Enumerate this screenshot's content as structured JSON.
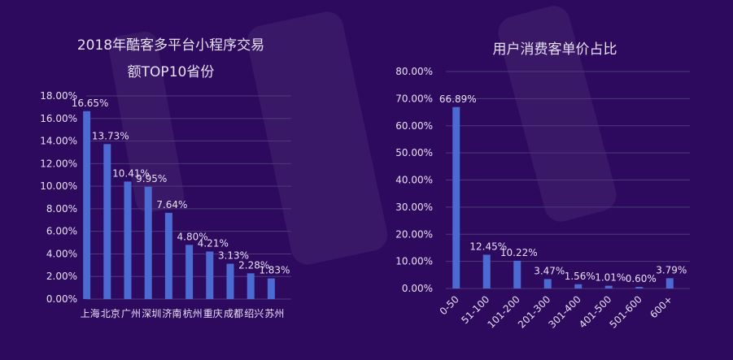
{
  "colors": {
    "background": "#2d0a5e",
    "bar": "#4a6ad4",
    "grid": "#4c3a78",
    "text": "#e6e0f2"
  },
  "chart_data": [
    {
      "type": "bar",
      "title_line1": "2018年酷客多平台小程序交易",
      "title_line2": "额TOP10省份",
      "categories": [
        "上海",
        "北京",
        "广州",
        "深圳",
        "济南",
        "杭州",
        "重庆",
        "成都",
        "绍兴",
        "苏州"
      ],
      "values": [
        16.65,
        13.73,
        10.41,
        9.95,
        7.64,
        4.8,
        4.21,
        3.13,
        2.28,
        1.83
      ],
      "labels": [
        "16.65%",
        "13.73%",
        "10.41%",
        "9.95%",
        "7.64%",
        "4.80%",
        "4.21%",
        "3.13%",
        "2.28%",
        "1.83%"
      ],
      "yticks": [
        "0.00%",
        "2.00%",
        "4.00%",
        "6.00%",
        "8.00%",
        "10.00%",
        "12.00%",
        "14.00%",
        "16.00%",
        "18.00%"
      ],
      "ylim": [
        0,
        18
      ],
      "grid": true,
      "xlabel": "",
      "ylabel": ""
    },
    {
      "type": "bar",
      "title_line1": "用户消费客单价占比",
      "title_line2": "",
      "categories": [
        "0-50",
        "51-100",
        "101-200",
        "201-300",
        "301-400",
        "401-500",
        "501-600",
        "600+"
      ],
      "values": [
        66.89,
        12.45,
        10.22,
        3.47,
        1.56,
        1.01,
        0.6,
        3.79
      ],
      "labels": [
        "66.89%",
        "12.45%",
        "10.22%",
        "3.47%",
        "1.56%",
        "1.01%",
        "0.60%",
        "3.79%"
      ],
      "yticks": [
        "0.00%",
        "10.00%",
        "20.00%",
        "30.00%",
        "40.00%",
        "50.00%",
        "60.00%",
        "70.00%",
        "80.00%"
      ],
      "ylim": [
        0,
        80
      ],
      "grid": true,
      "xlabel": "",
      "ylabel": ""
    }
  ]
}
